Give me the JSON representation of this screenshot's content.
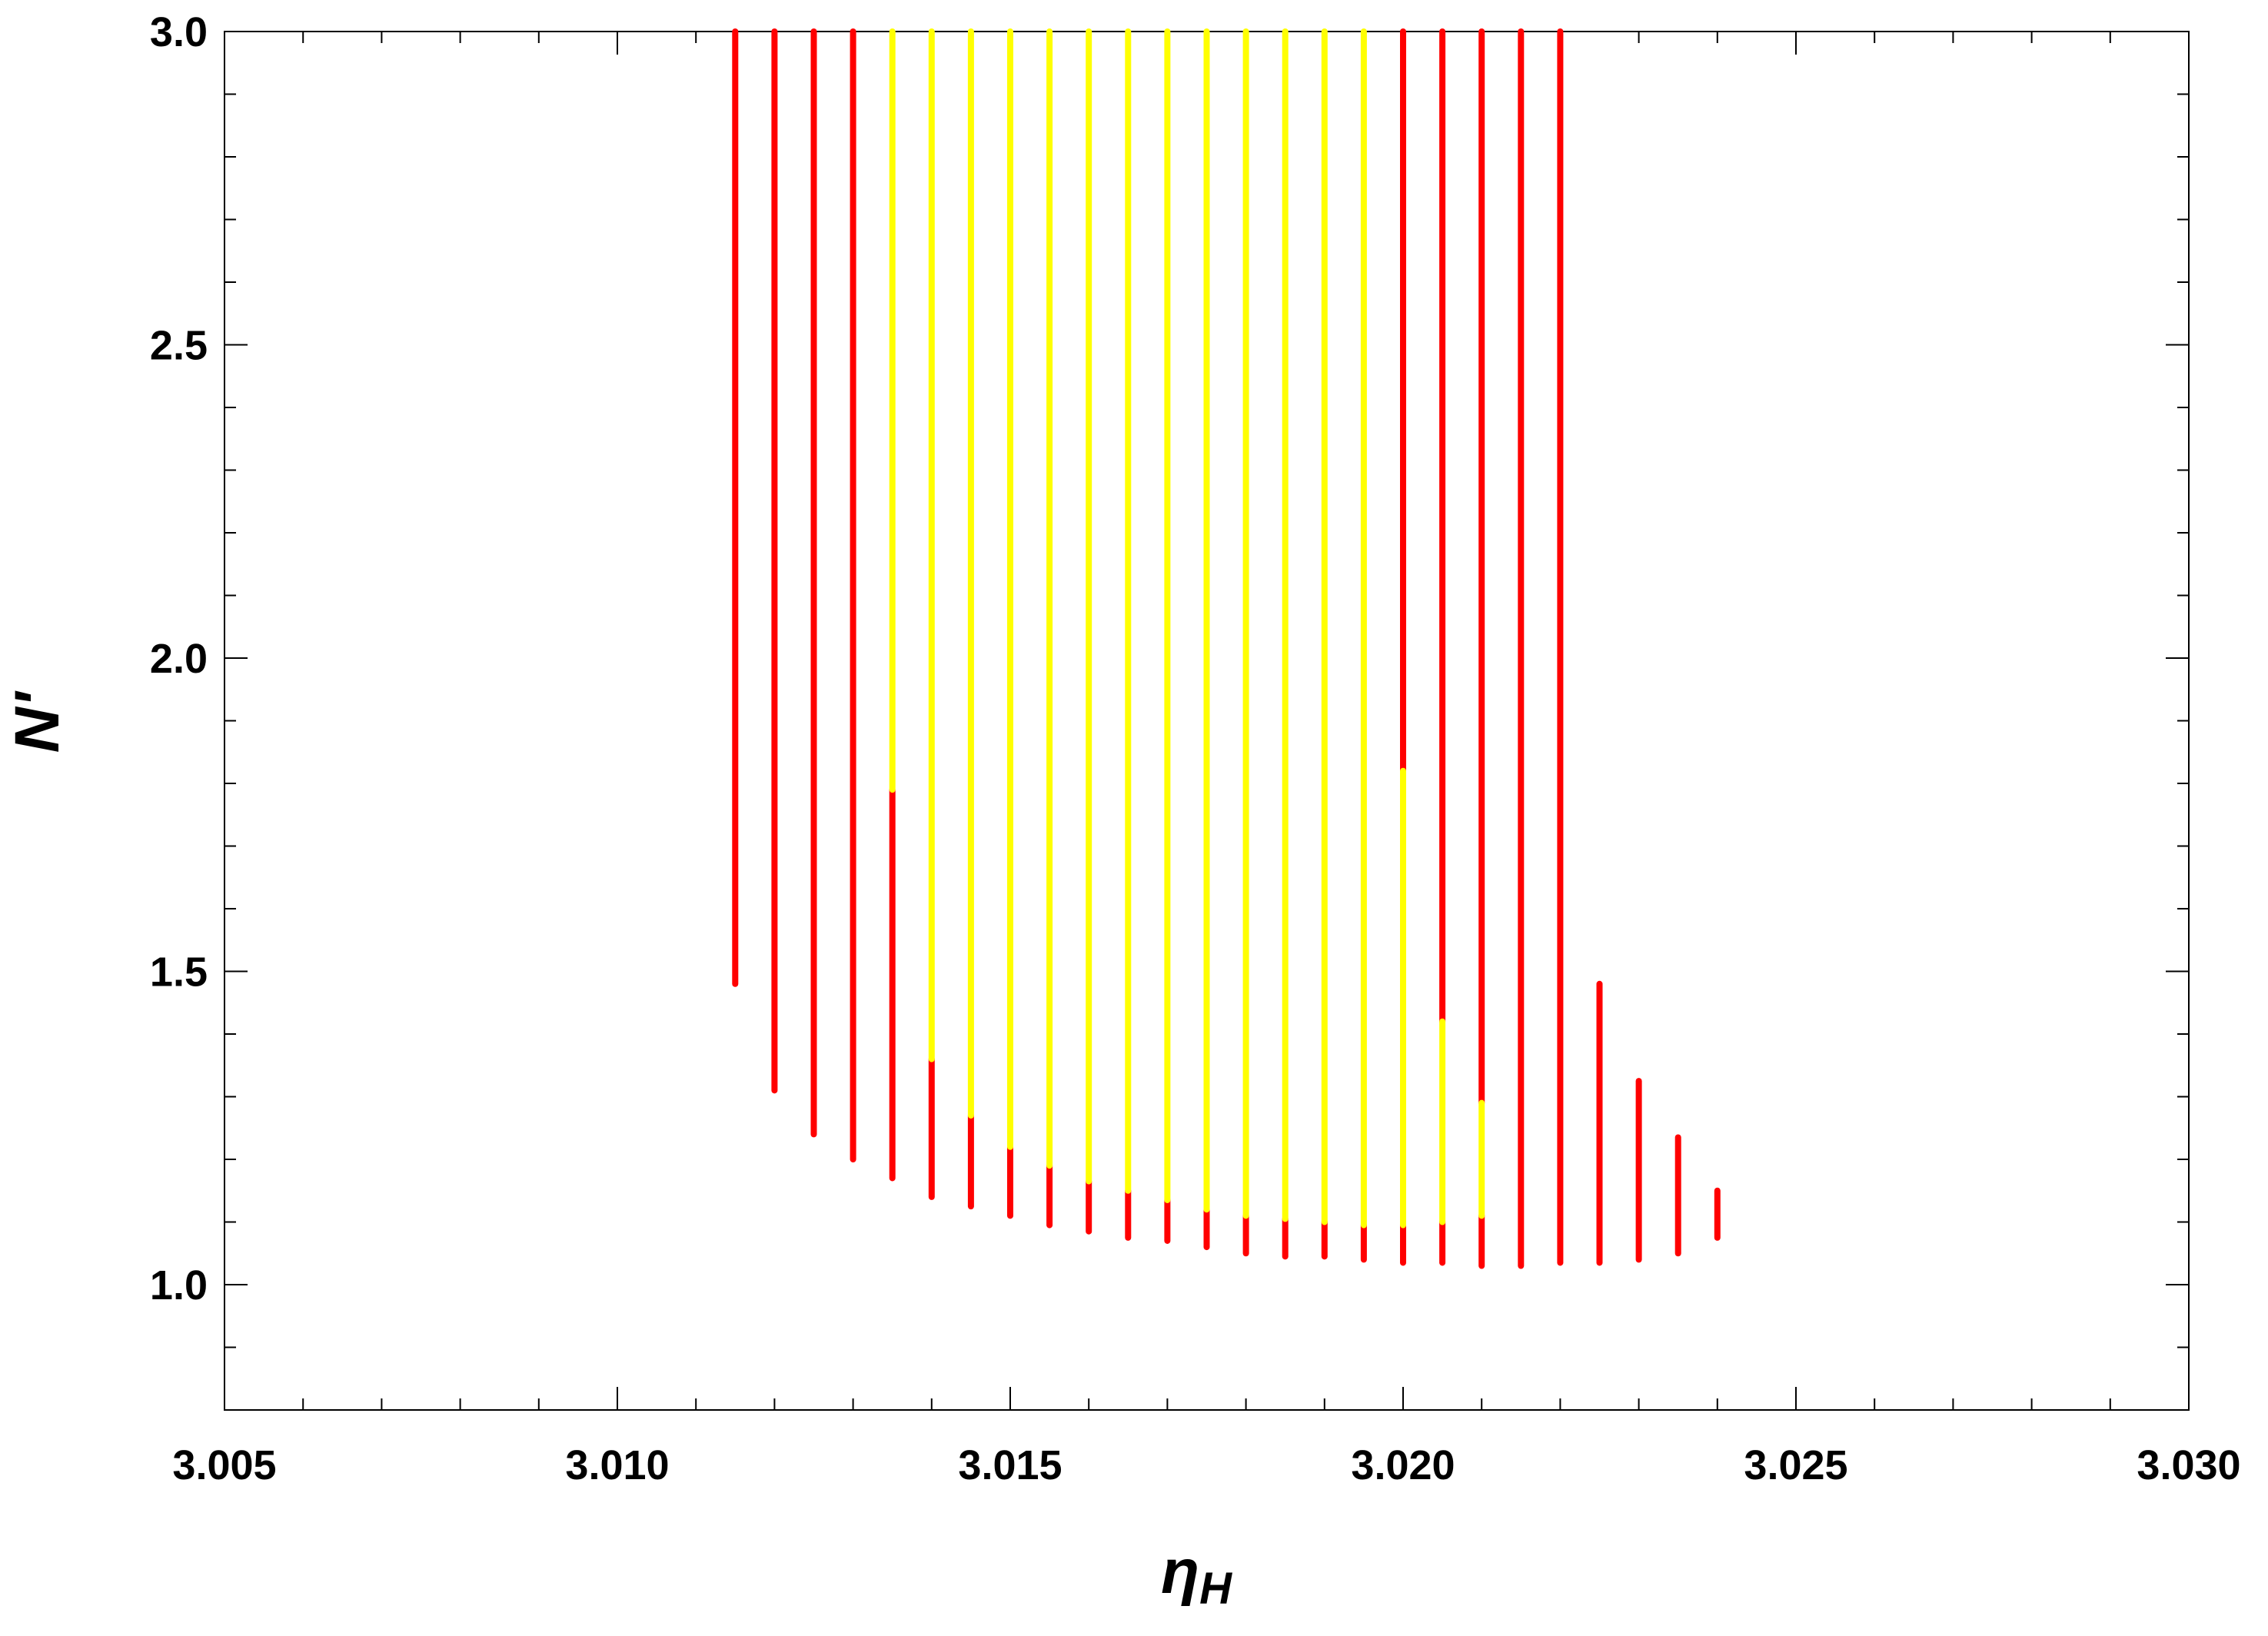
{
  "chart_data": {
    "type": "range",
    "xlabel": [
      "η",
      "H"
    ],
    "ylabel": "N'",
    "xlim": [
      3.005,
      3.03
    ],
    "ylim": [
      0.8,
      3.0
    ],
    "xticks": [
      {
        "value": 3.005,
        "label": "3.005"
      },
      {
        "value": 3.01,
        "label": "3.010"
      },
      {
        "value": 3.015,
        "label": "3.015"
      },
      {
        "value": 3.02,
        "label": "3.020"
      },
      {
        "value": 3.025,
        "label": "3.025"
      },
      {
        "value": 3.03,
        "label": "3.030"
      }
    ],
    "yticks": [
      {
        "value": 1.0,
        "label": "1.0"
      },
      1.5,
      {
        "value": 2.0,
        "label": "2.0"
      },
      2.5,
      {
        "value": 3.0,
        "label": "3.0"
      }
    ],
    "xminorticks": [
      3.006,
      3.007,
      3.008,
      3.009,
      3.011,
      3.012,
      3.013,
      3.014,
      3.016,
      3.017,
      3.018,
      3.019,
      3.021,
      3.022,
      3.023,
      3.024,
      3.026,
      3.027,
      3.028,
      3.029
    ],
    "yminorticks": [
      0.9,
      1.1,
      1.2,
      1.3,
      1.4,
      1.6,
      1.7,
      1.8,
      1.9,
      2.1,
      2.2,
      2.3,
      2.4,
      2.6,
      2.7,
      2.8,
      2.9
    ],
    "series": [
      {
        "color": "#ff0000",
        "x": [
          3.0115,
          3.012,
          3.0125,
          3.013,
          3.0135,
          3.014,
          3.0145,
          3.015,
          3.0155,
          3.016,
          3.0165,
          3.017,
          3.0175,
          3.018,
          3.0185,
          3.019,
          3.0195,
          3.02,
          3.02,
          3.0205,
          3.0205,
          3.021,
          3.021,
          3.0215,
          3.022,
          3.0225,
          3.023,
          3.0235,
          3.024
        ],
        "low": [
          1.48,
          1.31,
          1.24,
          1.2,
          1.17,
          1.14,
          1.125,
          1.11,
          1.095,
          1.085,
          1.075,
          1.07,
          1.06,
          1.05,
          1.045,
          1.045,
          1.04,
          1.035,
          1.82,
          1.035,
          1.42,
          1.03,
          1.29,
          1.03,
          1.035,
          1.035,
          1.04,
          1.05,
          1.075
        ],
        "high": [
          3.0,
          3.0,
          3.0,
          3.0,
          1.79,
          1.36,
          1.27,
          1.22,
          1.19,
          1.165,
          1.15,
          1.135,
          1.12,
          1.11,
          1.105,
          1.1,
          1.095,
          1.095,
          3.0,
          1.1,
          3.0,
          1.11,
          3.0,
          3.0,
          3.0,
          1.48,
          1.325,
          1.235,
          1.15
        ]
      },
      {
        "color": "#ffff00",
        "x": [
          3.0135,
          3.014,
          3.0145,
          3.015,
          3.0155,
          3.016,
          3.0165,
          3.017,
          3.0175,
          3.018,
          3.0185,
          3.019,
          3.0195,
          3.02,
          3.0205,
          3.021
        ],
        "low": [
          1.79,
          1.36,
          1.27,
          1.22,
          1.19,
          1.165,
          1.15,
          1.135,
          1.12,
          1.11,
          1.105,
          1.1,
          1.095,
          1.095,
          1.1,
          1.11
        ],
        "high": [
          3.0,
          3.0,
          3.0,
          3.0,
          3.0,
          3.0,
          3.0,
          3.0,
          3.0,
          3.0,
          3.0,
          3.0,
          3.0,
          1.82,
          1.42,
          1.29
        ]
      }
    ]
  }
}
